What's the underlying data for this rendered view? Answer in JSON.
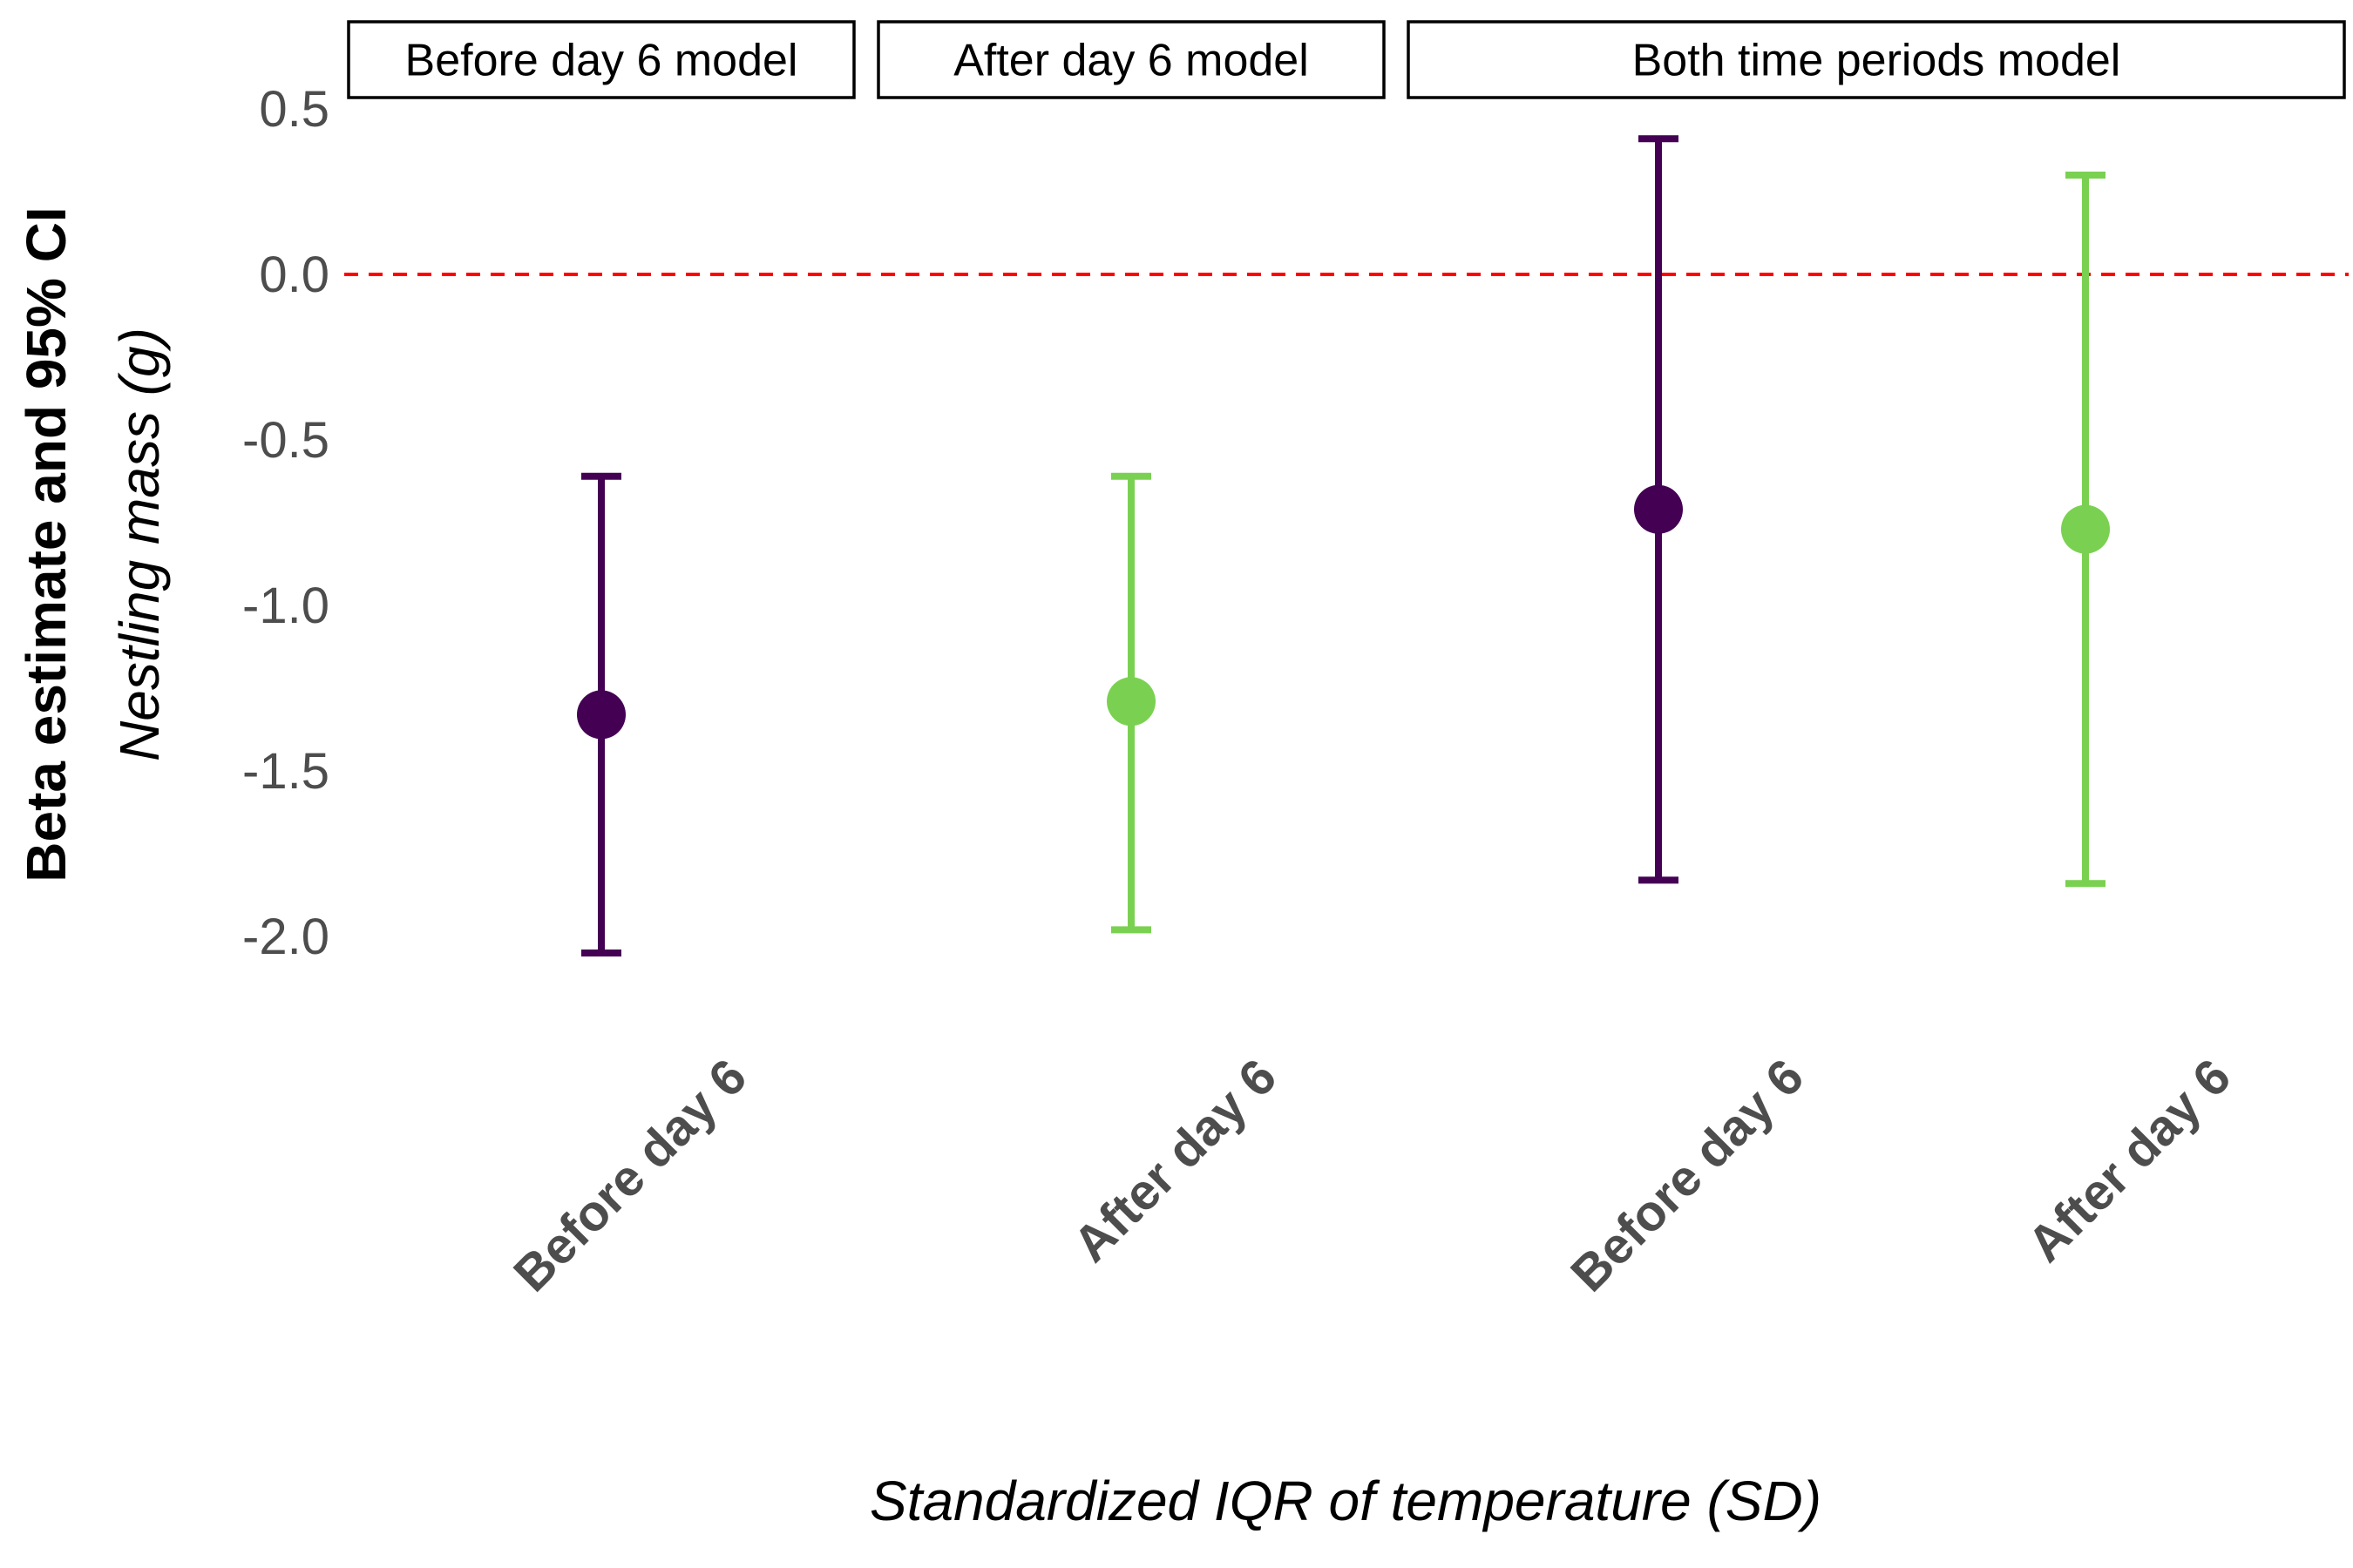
{
  "chart_data": {
    "type": "scatter",
    "subtype": "point-errorbar",
    "ylabel_main": "Beta estimate and 95% CI",
    "ylabel_sub": "Nestling mass (g)",
    "xlabel": "Standardized IQR of temperature (SD)",
    "ylim": [
      -2.15,
      0.55
    ],
    "yticks": [
      {
        "value": 0.5,
        "label": "0.5"
      },
      {
        "value": 0.0,
        "label": "0.0"
      },
      {
        "value": -0.5,
        "label": "-0.5"
      },
      {
        "value": -1.0,
        "label": "-1.0"
      },
      {
        "value": -1.5,
        "label": "-1.5"
      },
      {
        "value": -2.0,
        "label": "-2.0"
      }
    ],
    "reference_line": {
      "value": 0,
      "color": "#ff0000",
      "style": "dashed"
    },
    "colors": {
      "before": "#440154",
      "after": "#7ad151"
    },
    "panels": [
      {
        "strip": "Before day 6 model",
        "points": [
          {
            "category": "Before day 6",
            "group": "before",
            "estimate": -1.33,
            "lower": -2.05,
            "upper": -0.61
          }
        ]
      },
      {
        "strip": "After day 6 model",
        "points": [
          {
            "category": "After day 6",
            "group": "after",
            "estimate": -1.29,
            "lower": -1.98,
            "upper": -0.61
          }
        ]
      },
      {
        "strip": "Both time periods model",
        "points": [
          {
            "category": "Before day 6",
            "group": "before",
            "estimate": -0.71,
            "lower": -1.83,
            "upper": 0.41
          },
          {
            "category": "After day 6",
            "group": "after",
            "estimate": -0.77,
            "lower": -1.84,
            "upper": 0.3
          }
        ]
      }
    ]
  }
}
